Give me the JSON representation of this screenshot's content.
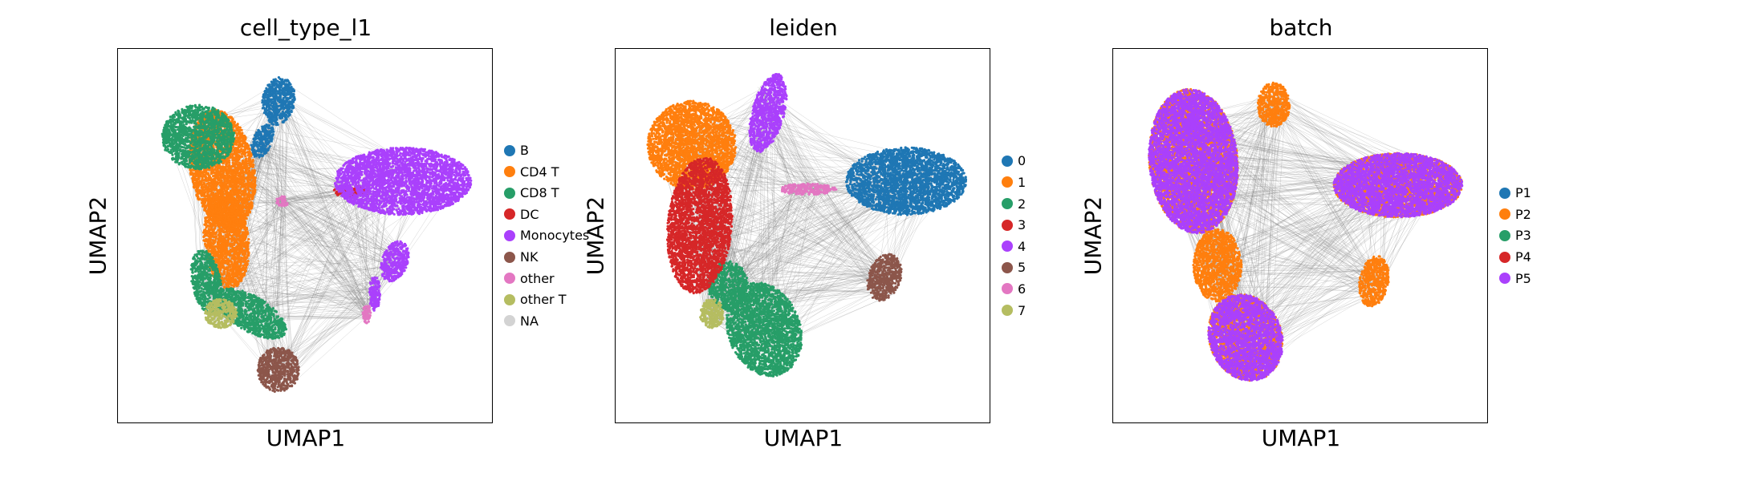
{
  "chart_data": [
    {
      "type": "scatter",
      "title": "cell_type_l1",
      "xlabel": "UMAP1",
      "ylabel": "UMAP2",
      "legend_placement": "right",
      "categories": [
        "B",
        "CD4 T",
        "CD8 T",
        "DC",
        "Monocytes",
        "NK",
        "other",
        "other T",
        "NA"
      ],
      "colors": [
        "#1f77b4",
        "#ff7f0e",
        "#279e68",
        "#d62728",
        "#aa40fc",
        "#8c564b",
        "#e377c2",
        "#b5bd61",
        "#d3d3d3"
      ]
    },
    {
      "type": "scatter",
      "title": "leiden",
      "xlabel": "UMAP1",
      "ylabel": "UMAP2",
      "legend_placement": "right",
      "categories": [
        "0",
        "1",
        "2",
        "3",
        "4",
        "5",
        "6",
        "7"
      ],
      "colors": [
        "#1f77b4",
        "#ff7f0e",
        "#279e68",
        "#d62728",
        "#aa40fc",
        "#8c564b",
        "#e377c2",
        "#b5bd61"
      ]
    },
    {
      "type": "scatter",
      "title": "batch",
      "xlabel": "UMAP1",
      "ylabel": "UMAP2",
      "legend_placement": "right",
      "categories": [
        "P1",
        "P2",
        "P3",
        "P4",
        "P5"
      ],
      "colors": [
        "#1f77b4",
        "#ff7f0e",
        "#279e68",
        "#d62728",
        "#aa40fc"
      ]
    }
  ],
  "edge_color": "#808080"
}
